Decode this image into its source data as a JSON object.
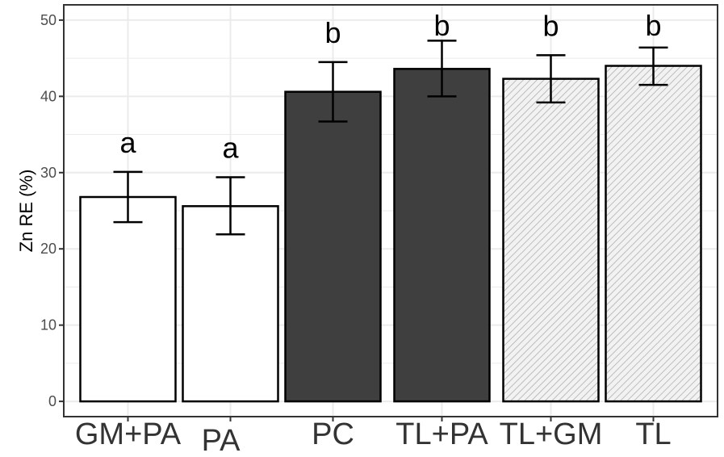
{
  "chart_data": {
    "type": "bar",
    "ylabel": "Zn RE (%)",
    "xlabel": "",
    "ylim": [
      -2,
      52
    ],
    "yticks": [
      0,
      10,
      20,
      30,
      40,
      50
    ],
    "grid": true,
    "categories": [
      "GM+PA",
      "PA",
      "PC",
      "TL+PA",
      "TL+GM",
      "TL"
    ],
    "values": [
      26.8,
      25.6,
      40.6,
      43.6,
      42.3,
      44.0
    ],
    "error_low": [
      23.5,
      21.9,
      36.7,
      40.0,
      39.2,
      41.5
    ],
    "error_high": [
      30.1,
      29.4,
      44.5,
      47.3,
      45.4,
      46.4
    ],
    "significance_letters": [
      "a",
      "a",
      "b",
      "b",
      "b",
      "b"
    ],
    "bar_fills": [
      "white",
      "white",
      "dark",
      "dark",
      "hatched",
      "hatched"
    ],
    "colors": {
      "white": "#ffffff",
      "dark": "#3f3f3f",
      "hatch_bg": "#f2f2f2",
      "hatch_line": "#bdbdbd",
      "outline": "#000000",
      "grid": "#ebebeb"
    }
  }
}
